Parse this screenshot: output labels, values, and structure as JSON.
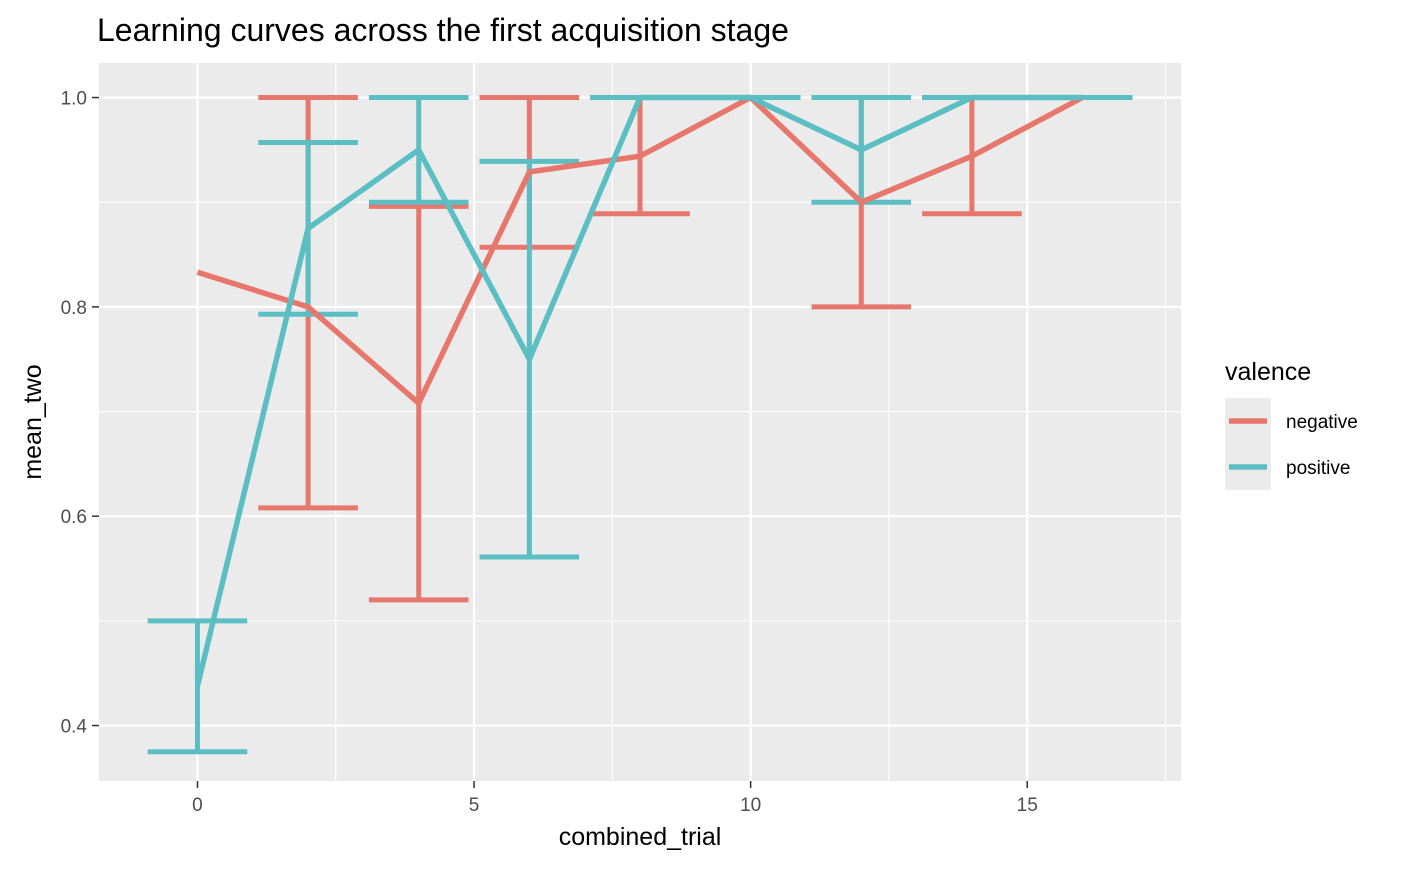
{
  "chart_data": {
    "type": "line",
    "title": "Learning curves across the first acquisition stage",
    "xlabel": "combined_trial",
    "ylabel": "mean_two",
    "xlim": [
      -1.78,
      17.78
    ],
    "ylim": [
      0.347,
      1.033
    ],
    "x_ticks": [
      0,
      5,
      10,
      15
    ],
    "x_tick_labels": [
      "0",
      "5",
      "10",
      "15"
    ],
    "y_ticks": [
      0.4,
      0.6,
      0.8,
      1.0
    ],
    "y_tick_labels": [
      "0.4",
      "0.6",
      "0.8",
      "1.0"
    ],
    "grid": true,
    "legend": {
      "title": "valence",
      "position": "right"
    },
    "series": [
      {
        "name": "negative",
        "color": "#E7776C",
        "x": [
          0,
          2,
          4,
          6,
          8,
          10,
          12,
          14,
          16
        ],
        "y": [
          0.833,
          0.8,
          0.708,
          0.929,
          0.944,
          1.0,
          0.9,
          0.944,
          1.0
        ],
        "error_bars": [
          {
            "x": 2,
            "lower": 0.608,
            "upper": 1.0
          },
          {
            "x": 4,
            "lower": 0.52,
            "upper": 0.896
          },
          {
            "x": 6,
            "lower": 0.857,
            "upper": 1.0
          },
          {
            "x": 8,
            "lower": 0.889,
            "upper": 1.0
          },
          {
            "x": 10,
            "lower": 1.0,
            "upper": 1.0
          },
          {
            "x": 12,
            "lower": 0.8,
            "upper": 1.0
          },
          {
            "x": 14,
            "lower": 0.889,
            "upper": 1.0
          },
          {
            "x": 16,
            "lower": 1.0,
            "upper": 1.0
          }
        ]
      },
      {
        "name": "positive",
        "color": "#5BBEC3",
        "x": [
          0,
          2,
          4,
          6,
          8,
          10,
          12,
          14,
          16
        ],
        "y": [
          0.438,
          0.875,
          0.95,
          0.75,
          1.0,
          1.0,
          0.95,
          1.0,
          1.0
        ],
        "error_bars": [
          {
            "x": 0,
            "lower": 0.375,
            "upper": 0.5
          },
          {
            "x": 2,
            "lower": 0.793,
            "upper": 0.957
          },
          {
            "x": 4,
            "lower": 0.9,
            "upper": 1.0
          },
          {
            "x": 6,
            "lower": 0.561,
            "upper": 0.939
          },
          {
            "x": 8,
            "lower": 1.0,
            "upper": 1.0
          },
          {
            "x": 10,
            "lower": 1.0,
            "upper": 1.0
          },
          {
            "x": 12,
            "lower": 0.9,
            "upper": 1.0
          },
          {
            "x": 14,
            "lower": 1.0,
            "upper": 1.0
          },
          {
            "x": 16,
            "lower": 1.0,
            "upper": 1.0
          }
        ]
      }
    ],
    "panel_background": "#EBEBEB",
    "grid_color": "#FFFFFF"
  }
}
